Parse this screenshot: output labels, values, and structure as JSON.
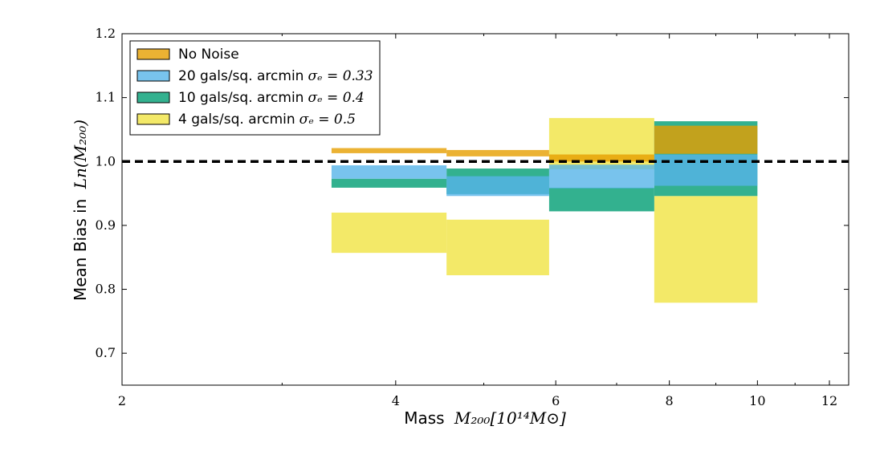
{
  "chart_data": {
    "type": "area",
    "title": "",
    "xlabel": {
      "text": "Mass",
      "math": "M₂₀₀[10¹⁴M⊙]"
    },
    "ylabel": {
      "text": "Mean Bias in",
      "math": "Ln(M₂₀₀)"
    },
    "xlim": [
      2,
      12.6
    ],
    "ylim": [
      0.65,
      1.2
    ],
    "xscale": "log",
    "xticks": [
      2,
      4,
      6,
      8,
      10,
      12
    ],
    "yticks": [
      0.7,
      0.8,
      0.9,
      1.0,
      1.1,
      1.2
    ],
    "ytick_labels": [
      "0.7",
      "0.8",
      "0.9",
      "1.0",
      "1.1",
      "1.2"
    ],
    "reference_line": {
      "y": 1.0,
      "style": "dashed",
      "color": "#000000"
    },
    "bin_edges": [
      3.4,
      4.55,
      5.9,
      7.7,
      10.0
    ],
    "legend_position": "top-left",
    "series": [
      {
        "name": "4 gals/sq. arcmin",
        "name_math": "σₑ = 0.5",
        "color": "#f0e442",
        "lower": [
          0.857,
          0.822,
          0.988,
          0.779
        ],
        "upper": [
          0.92,
          0.909,
          1.068,
          0.946
        ]
      },
      {
        "name": "10 gals/sq. arcmin",
        "name_math": "σₑ = 0.4",
        "color": "#009e73",
        "lower": [
          0.959,
          0.949,
          0.922,
          0.946
        ],
        "upper": [
          0.973,
          0.989,
          0.959,
          1.063
        ]
      },
      {
        "name": "20 gals/sq. arcmin",
        "name_math": "σₑ = 0.33",
        "color": "#56b4e9",
        "lower": [
          0.973,
          0.946,
          0.958,
          0.962
        ],
        "upper": [
          0.994,
          0.977,
          0.995,
          1.011
        ]
      },
      {
        "name": "No Noise",
        "name_math": "",
        "color": "#e69f00",
        "lower": [
          1.013,
          1.008,
          1.0,
          1.012
        ],
        "upper": [
          1.021,
          1.018,
          1.011,
          1.056
        ]
      }
    ]
  }
}
